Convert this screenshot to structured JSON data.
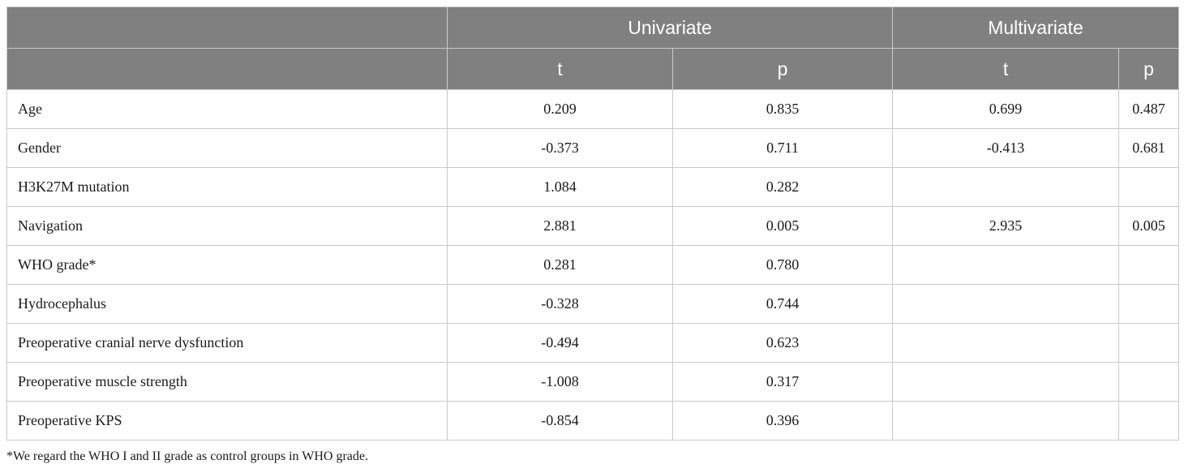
{
  "table": {
    "group_headers": [
      "",
      "Univariate",
      "Multivariate"
    ],
    "sub_headers": [
      "",
      "t",
      "p",
      "t",
      "p"
    ],
    "rows": [
      {
        "label": "Age",
        "uni_t": "0.209",
        "uni_p": "0.835",
        "multi_t": "0.699",
        "multi_p": "0.487"
      },
      {
        "label": "Gender",
        "uni_t": "-0.373",
        "uni_p": "0.711",
        "multi_t": "-0.413",
        "multi_p": "0.681"
      },
      {
        "label": "H3K27M mutation",
        "uni_t": "1.084",
        "uni_p": "0.282",
        "multi_t": "",
        "multi_p": ""
      },
      {
        "label": "Navigation",
        "uni_t": "2.881",
        "uni_p": "0.005",
        "multi_t": "2.935",
        "multi_p": "0.005"
      },
      {
        "label": "WHO grade*",
        "uni_t": "0.281",
        "uni_p": "0.780",
        "multi_t": "",
        "multi_p": ""
      },
      {
        "label": "Hydrocephalus",
        "uni_t": "-0.328",
        "uni_p": "0.744",
        "multi_t": "",
        "multi_p": ""
      },
      {
        "label": "Preoperative cranial nerve dysfunction",
        "uni_t": "-0.494",
        "uni_p": "0.623",
        "multi_t": "",
        "multi_p": ""
      },
      {
        "label": "Preoperative muscle strength",
        "uni_t": "-1.008",
        "uni_p": "0.317",
        "multi_t": "",
        "multi_p": ""
      },
      {
        "label": "Preoperative KPS",
        "uni_t": "-0.854",
        "uni_p": "0.396",
        "multi_t": "",
        "multi_p": ""
      }
    ]
  },
  "footnote": "*We regard the WHO I and II grade as control groups in WHO grade.",
  "colors": {
    "header_bg": "#808080",
    "header_text": "#ffffff",
    "grid": "#c9c9c9"
  }
}
